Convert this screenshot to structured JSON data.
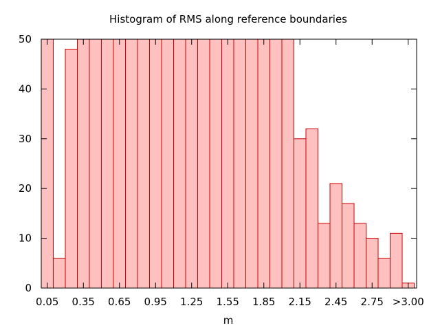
{
  "chart_data": {
    "type": "bar",
    "title": "Histogram of RMS along reference boundaries",
    "xlabel": "m",
    "ylabel": "",
    "ylim": [
      0,
      50
    ],
    "yticks": [
      0,
      10,
      20,
      30,
      40,
      50
    ],
    "xticks": [
      "0.05",
      "0.35",
      "0.65",
      "0.95",
      "1.25",
      "1.55",
      "1.85",
      "2.15",
      "2.45",
      "2.75",
      ">3.00"
    ],
    "grid": false,
    "legend": "none",
    "bar_fill": "#ffc0c0",
    "bar_stroke": "#cc0000",
    "bins": [
      "0.05",
      "0.15",
      "0.25",
      "0.35",
      "0.45",
      "0.55",
      "0.65",
      "0.75",
      "0.85",
      "0.95",
      "1.05",
      "1.15",
      "1.25",
      "1.35",
      "1.45",
      "1.55",
      "1.65",
      "1.75",
      "1.85",
      "1.95",
      "2.05",
      "2.15",
      "2.25",
      "2.35",
      "2.45",
      "2.55",
      "2.65",
      "2.75",
      "2.85",
      "2.95",
      ">3.00"
    ],
    "values": [
      50,
      6,
      48,
      50,
      50,
      50,
      50,
      50,
      50,
      50,
      50,
      50,
      50,
      50,
      50,
      50,
      50,
      50,
      50,
      50,
      50,
      30,
      32,
      13,
      21,
      17,
      13,
      10,
      6,
      11,
      1
    ]
  }
}
